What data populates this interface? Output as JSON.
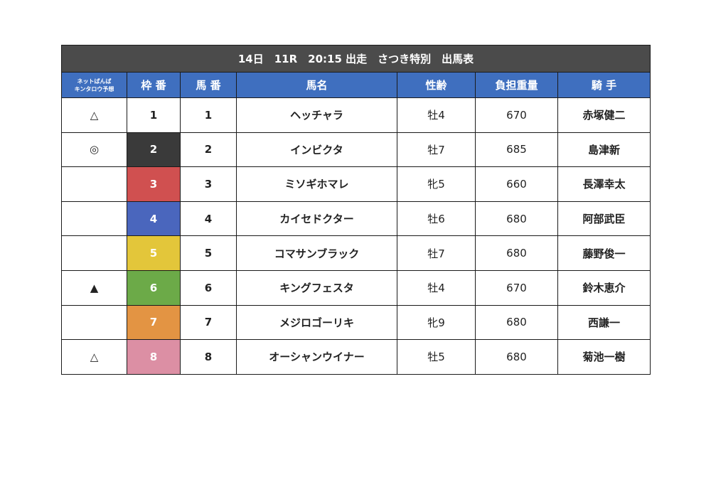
{
  "title": "14日　11R　20:15 出走　さつき特別　出馬表",
  "columns": {
    "prediction_line1": "ネットばんば",
    "prediction_line2": "キンタロウ予想",
    "waku": "枠 番",
    "umaban": "馬 番",
    "horse_name": "馬名",
    "sex_age": "性齢",
    "weight": "負担重量",
    "jockey": "騎 手"
  },
  "frame_colors": {
    "1": {
      "bg": "#ffffff",
      "fg": "#222222"
    },
    "2": {
      "bg": "#3a3a3a",
      "fg": "#ffffff"
    },
    "3": {
      "bg": "#d05050",
      "fg": "#ffffff"
    },
    "4": {
      "bg": "#4a66bd",
      "fg": "#ffffff"
    },
    "5": {
      "bg": "#e3c63a",
      "fg": "#ffffff"
    },
    "6": {
      "bg": "#6caa48",
      "fg": "#ffffff"
    },
    "7": {
      "bg": "#e39443",
      "fg": "#ffffff"
    },
    "8": {
      "bg": "#dc8fa4",
      "fg": "#ffffff"
    }
  },
  "rows": [
    {
      "mark": "△",
      "waku": "1",
      "umaban": "1",
      "horse": "ヘッチャラ",
      "sex_age": "牡4",
      "weight": "670",
      "jockey": "赤塚健二"
    },
    {
      "mark": "◎",
      "waku": "2",
      "umaban": "2",
      "horse": "インビクタ",
      "sex_age": "牡7",
      "weight": "685",
      "jockey": "島津新"
    },
    {
      "mark": "",
      "waku": "3",
      "umaban": "3",
      "horse": "ミソギホマレ",
      "sex_age": "牝5",
      "weight": "660",
      "jockey": "長澤幸太"
    },
    {
      "mark": "",
      "waku": "4",
      "umaban": "4",
      "horse": "カイセドクター",
      "sex_age": "牡6",
      "weight": "680",
      "jockey": "阿部武臣"
    },
    {
      "mark": "",
      "waku": "5",
      "umaban": "5",
      "horse": "コマサンブラック",
      "sex_age": "牡7",
      "weight": "680",
      "jockey": "藤野俊一"
    },
    {
      "mark": "▲",
      "waku": "6",
      "umaban": "6",
      "horse": "キングフェスタ",
      "sex_age": "牡4",
      "weight": "670",
      "jockey": "鈴木恵介"
    },
    {
      "mark": "",
      "waku": "7",
      "umaban": "7",
      "horse": "メジロゴーリキ",
      "sex_age": "牝9",
      "weight": "680",
      "jockey": "西謙一"
    },
    {
      "mark": "△",
      "waku": "8",
      "umaban": "8",
      "horse": "オーシャンウイナー",
      "sex_age": "牡5",
      "weight": "680",
      "jockey": "菊池一樹"
    }
  ]
}
